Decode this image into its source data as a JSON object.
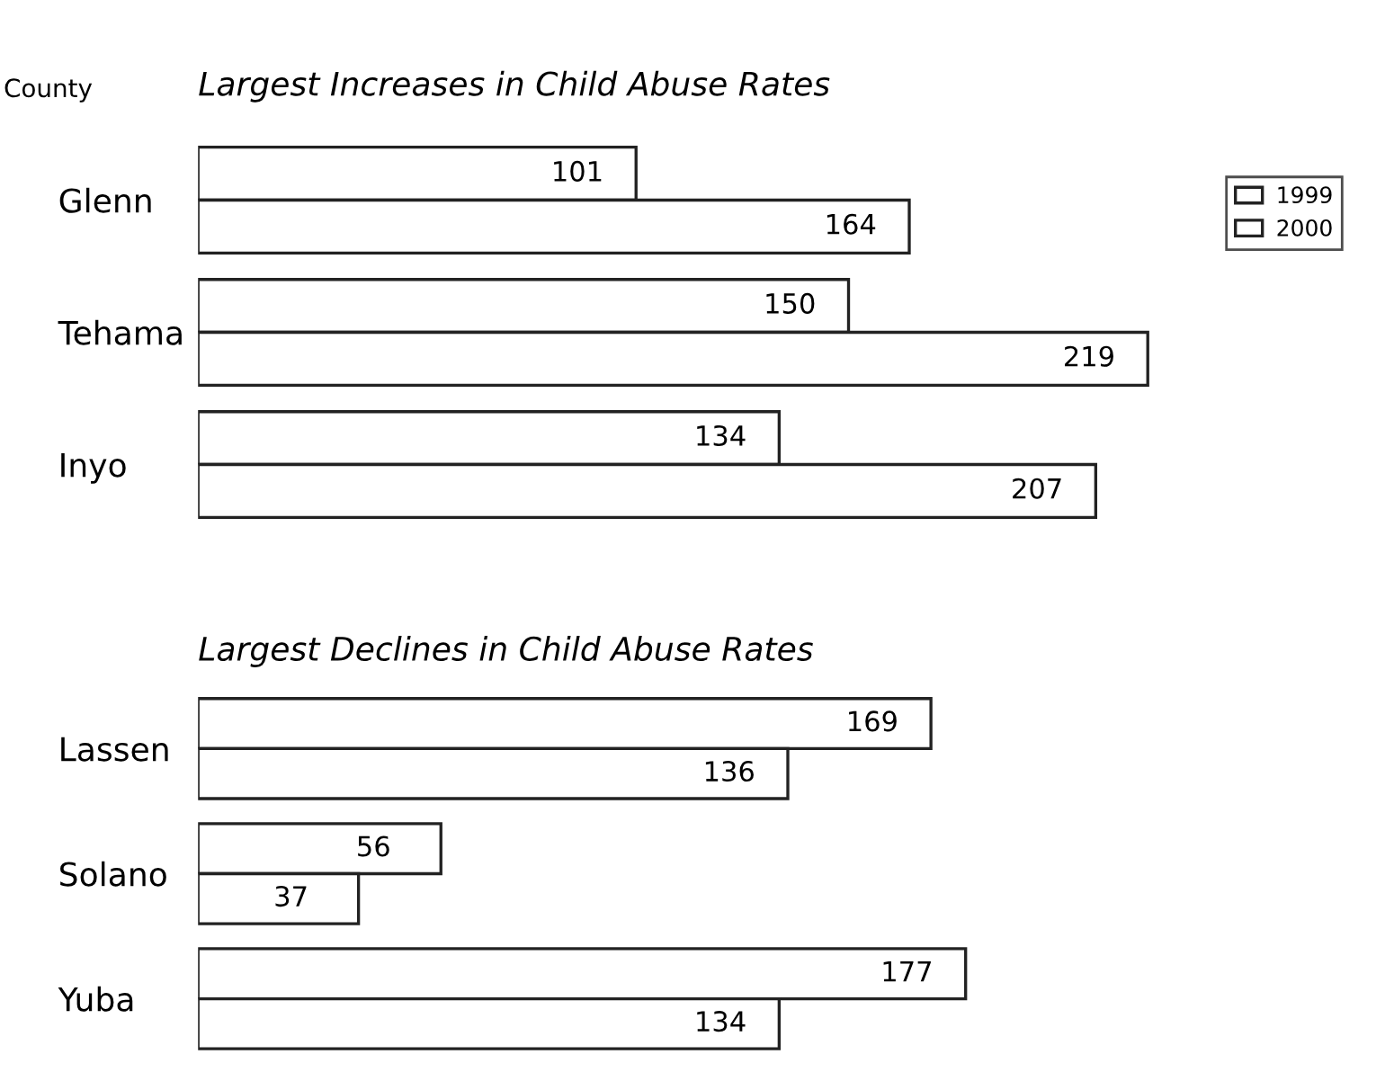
{
  "chart_data": [
    {
      "type": "bar",
      "orientation": "horizontal",
      "title": "Largest Increases in Child Abuse Rates",
      "ylabel": "County",
      "categories": [
        "Glenn",
        "Tehama",
        "Inyo"
      ],
      "series": [
        {
          "name": "1999",
          "color": "#ffffff",
          "values": [
            101,
            150,
            134
          ]
        },
        {
          "name": "2000",
          "color": "#ffffff",
          "values": [
            164,
            219,
            207
          ]
        }
      ],
      "data_labels": true,
      "legend": "right",
      "tick_labels": "y",
      "grid": false
    },
    {
      "type": "bar",
      "orientation": "horizontal",
      "title": "Largest Declines in Child Abuse Rates",
      "categories": [
        "Lassen",
        "Solano",
        "Yuba"
      ],
      "series": [
        {
          "color": "#ffffff",
          "values": [
            169,
            56,
            177
          ]
        },
        {
          "color": "#ffffff",
          "values": [
            136,
            37,
            134
          ]
        }
      ],
      "data_labels": true,
      "tick_labels": "y",
      "grid": false
    }
  ]
}
